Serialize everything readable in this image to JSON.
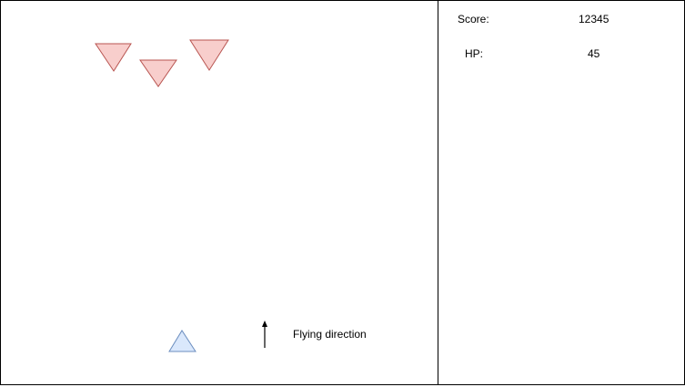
{
  "hud": {
    "score_label": "Score:",
    "score_value": "12345",
    "hp_label": "HP:",
    "hp_value": "45"
  },
  "legend": {
    "direction_label": "Flying direction",
    "arrow_icon": "arrow-up-icon"
  },
  "entities": {
    "enemy_fill": "#f8cecc",
    "enemy_stroke": "#b85450",
    "player_fill": "#dae8fc",
    "player_stroke": "#6c8ebf"
  }
}
